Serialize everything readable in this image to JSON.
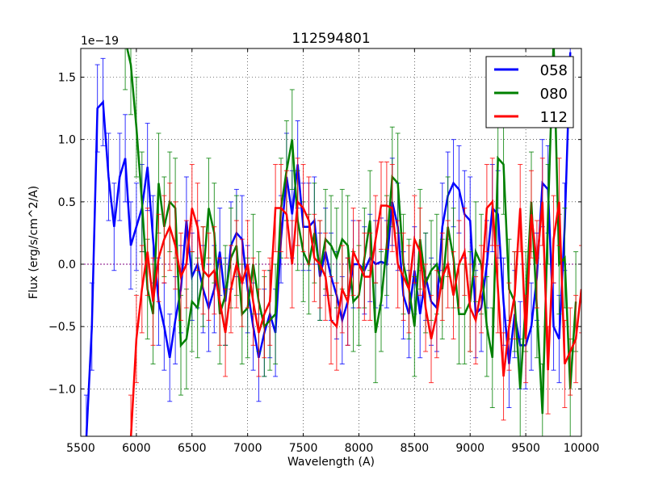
{
  "chart_data": {
    "type": "line",
    "title": "112594801",
    "xlabel": "Wavelength (A)",
    "ylabel": "Flux (erg/s/cm^2/A)",
    "offset_text": "1e−19",
    "xlim": [
      5500,
      10000
    ],
    "ylim": [
      -1.38,
      1.73
    ],
    "xticks": [
      5500,
      6000,
      6500,
      7000,
      7500,
      8000,
      8500,
      9000,
      9500,
      10000
    ],
    "xtick_labels": [
      "5500",
      "6000",
      "6500",
      "7000",
      "7500",
      "8000",
      "8500",
      "9000",
      "9500",
      "10000"
    ],
    "yticks": [
      -1.0,
      -0.5,
      0.0,
      0.5,
      1.0,
      1.5
    ],
    "ytick_labels": [
      "−1.0",
      "−0.5",
      "0.0",
      "0.5",
      "1.0",
      "1.5"
    ],
    "grid": true,
    "legend_position": "top-right",
    "series": [
      {
        "name": "058",
        "color": "#0000ff",
        "x_start": 5550,
        "x_step": 50,
        "yerr": 0.35,
        "values": [
          -1.4,
          -0.5,
          1.25,
          1.3,
          0.7,
          0.3,
          0.7,
          0.85,
          0.15,
          0.3,
          0.45,
          0.78,
          0.2,
          -0.3,
          -0.5,
          -0.75,
          -0.45,
          -0.2,
          0.35,
          -0.1,
          0.0,
          -0.2,
          -0.35,
          -0.2,
          0.1,
          -0.3,
          0.15,
          0.25,
          0.2,
          -0.2,
          -0.5,
          -0.75,
          -0.55,
          -0.4,
          -0.55,
          0.2,
          0.7,
          0.4,
          0.8,
          0.3,
          0.3,
          0.35,
          -0.1,
          0.1,
          -0.1,
          -0.25,
          -0.45,
          -0.3,
          0.0,
          0.0,
          -0.05,
          0.05,
          0.0,
          0.02,
          0.0,
          0.5,
          0.3,
          -0.25,
          -0.4,
          -0.05,
          -0.4,
          -0.1,
          -0.3,
          -0.35,
          0.3,
          0.55,
          0.65,
          0.6,
          0.4,
          0.35,
          -0.4,
          -0.35,
          0.0,
          0.45,
          0.4,
          -0.3,
          -0.8,
          -0.4,
          -0.65,
          -0.65,
          -0.5,
          -0.1,
          0.65,
          0.6,
          -0.5,
          -0.6,
          0.3,
          1.7
        ]
      },
      {
        "name": "080",
        "color": "#008000",
        "x_start": 5900,
        "x_step": 50,
        "yerr": 0.4,
        "values": [
          1.8,
          1.6,
          1.1,
          0.5,
          -0.2,
          -0.4,
          0.65,
          0.3,
          0.5,
          0.45,
          -0.65,
          -0.6,
          -0.3,
          -0.35,
          -0.1,
          0.45,
          0.25,
          -0.4,
          -0.25,
          0.05,
          0.15,
          -0.4,
          -0.35,
          0.0,
          -0.3,
          -0.5,
          -0.45,
          -0.4,
          0.45,
          0.75,
          1.0,
          0.35,
          0.1,
          0.0,
          0.25,
          -0.05,
          0.2,
          0.15,
          0.05,
          0.2,
          0.15,
          -0.3,
          -0.25,
          0.05,
          0.35,
          -0.55,
          -0.3,
          0.15,
          0.7,
          0.65,
          0.0,
          -0.2,
          -0.5,
          0.2,
          -0.15,
          -0.05,
          0.0,
          -0.2,
          0.3,
          0.05,
          -0.4,
          -0.4,
          -0.3,
          0.1,
          0.0,
          -0.5,
          -0.75,
          0.85,
          0.8,
          -0.2,
          -0.3,
          -1.0,
          -0.3,
          0.5,
          -0.35,
          -1.2,
          0.4,
          1.8,
          0.0,
          0.05,
          -1.0,
          -0.3
        ]
      },
      {
        "name": "112",
        "color": "#ff0000",
        "x_start": 5950,
        "x_step": 50,
        "yerr": 0.35,
        "values": [
          -1.4,
          -0.6,
          -0.2,
          0.1,
          -0.3,
          0.05,
          0.2,
          0.3,
          0.15,
          -0.1,
          0.0,
          0.45,
          0.3,
          -0.05,
          -0.1,
          -0.05,
          -0.3,
          -0.55,
          -0.2,
          0.0,
          -0.15,
          0.0,
          -0.3,
          -0.55,
          -0.4,
          -0.3,
          0.45,
          0.45,
          0.4,
          0.0,
          0.5,
          0.45,
          0.35,
          0.05,
          0.0,
          -0.1,
          -0.45,
          -0.5,
          -0.2,
          -0.3,
          0.1,
          0.0,
          -0.1,
          -0.1,
          0.2,
          0.47,
          0.47,
          0.45,
          0.0,
          -0.1,
          -0.2,
          0.2,
          0.1,
          -0.35,
          -0.6,
          -0.4,
          -0.1,
          0.0,
          -0.25,
          0.0,
          0.1,
          -0.35,
          -0.45,
          -0.2,
          0.45,
          0.5,
          -0.2,
          -0.9,
          -0.5,
          -0.25,
          0.45,
          -0.6,
          0.4,
          0.0,
          0.5,
          -0.85,
          0.2,
          0.5,
          -0.8,
          -0.7,
          -0.6,
          -0.2
        ]
      }
    ]
  }
}
